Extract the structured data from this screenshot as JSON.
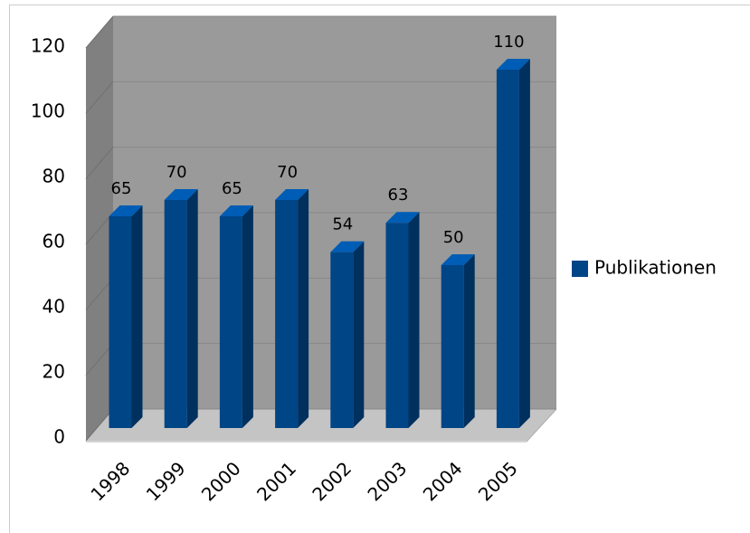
{
  "chart_data": {
    "type": "bar3d",
    "categories": [
      "1998",
      "1999",
      "2000",
      "2001",
      "2002",
      "2003",
      "2004",
      "2005"
    ],
    "series": [
      {
        "name": "Publikationen",
        "color": "#004586",
        "values": [
          65,
          70,
          65,
          70,
          54,
          63,
          50,
          110
        ]
      }
    ],
    "ylim": [
      0,
      120
    ],
    "yticks": [
      0,
      20,
      40,
      60,
      80,
      100,
      120
    ],
    "grid": true,
    "legend": "right"
  }
}
